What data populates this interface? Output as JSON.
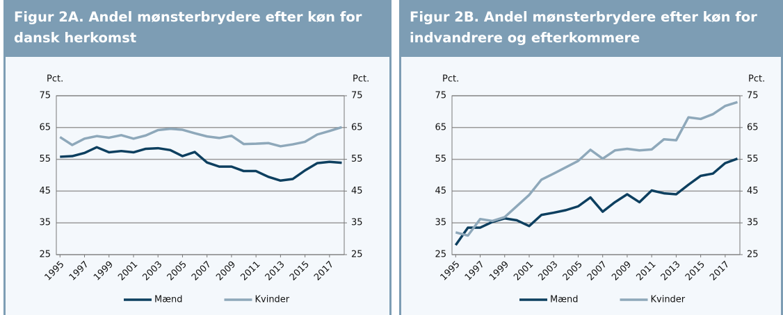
{
  "chart_data": [
    {
      "type": "line",
      "title": "Figur 2A. Andel mønsterbrydere efter køn for dansk herkomst",
      "ylabel": "Pct.",
      "y2label": "Pct.",
      "x": [
        1995,
        1996,
        1997,
        1998,
        1999,
        2000,
        2001,
        2002,
        2003,
        2004,
        2005,
        2006,
        2007,
        2008,
        2009,
        2010,
        2011,
        2012,
        2013,
        2014,
        2015,
        2016,
        2017,
        2018
      ],
      "xlim": [
        1994.7,
        2018.2
      ],
      "xticks": [
        1995,
        1997,
        1999,
        2001,
        2003,
        2005,
        2007,
        2009,
        2011,
        2013,
        2015,
        2017
      ],
      "ylim": [
        25,
        75
      ],
      "yticks": [
        25,
        35,
        45,
        55,
        65,
        75
      ],
      "y2lim": [
        25,
        75
      ],
      "y2ticks": [
        25,
        35,
        45,
        55,
        65,
        75
      ],
      "grid": true,
      "legend": "bottom",
      "series": [
        {
          "name": "Mænd",
          "color": "#0d3f5f",
          "values": [
            55.8,
            56,
            57,
            58.8,
            57.2,
            57.6,
            57.2,
            58.3,
            58.5,
            57.9,
            56,
            57.3,
            54,
            52.7,
            52.7,
            51.3,
            51.3,
            49.5,
            48.3,
            48.8,
            51.5,
            53.8,
            54.2,
            53.9
          ]
        },
        {
          "name": "Kvinder",
          "color": "#8ea8ba",
          "values": [
            62,
            59.5,
            61.5,
            62.3,
            61.8,
            62.6,
            61.5,
            62.5,
            64.2,
            64.6,
            64.3,
            63.2,
            62.2,
            61.7,
            62.4,
            59.8,
            59.9,
            60.1,
            59.1,
            59.7,
            60.5,
            62.8,
            63.9,
            65.1
          ]
        }
      ]
    },
    {
      "type": "line",
      "title": "Figur 2B. Andel mønsterbrydere efter køn for indvandrere og efterkommere",
      "ylabel": "Pct.",
      "y2label": "Pct.",
      "x": [
        1995,
        1996,
        1997,
        1998,
        1999,
        2000,
        2001,
        2002,
        2003,
        2004,
        2005,
        2006,
        2007,
        2008,
        2009,
        2010,
        2011,
        2012,
        2013,
        2014,
        2015,
        2016,
        2017,
        2018
      ],
      "xlim": [
        1994.7,
        2018.2
      ],
      "xticks": [
        1995,
        1997,
        1999,
        2001,
        2003,
        2005,
        2007,
        2009,
        2011,
        2013,
        2015,
        2017
      ],
      "ylim": [
        25,
        75
      ],
      "yticks": [
        25,
        35,
        45,
        55,
        65,
        75
      ],
      "y2lim": [
        25,
        75
      ],
      "y2ticks": [
        25,
        35,
        45,
        55,
        65,
        75
      ],
      "grid": true,
      "legend": "bottom",
      "series": [
        {
          "name": "Mænd",
          "color": "#0d3f5f",
          "values": [
            28,
            33.5,
            33.5,
            35.3,
            36.4,
            35.8,
            34,
            37.5,
            38.2,
            39,
            40.2,
            43,
            38.5,
            41.5,
            44,
            41.5,
            45.2,
            44.3,
            44,
            47,
            49.8,
            50.5,
            53.8,
            55.2
          ]
        },
        {
          "name": "Kvinder",
          "color": "#8ea8ba",
          "values": [
            32,
            31,
            36.2,
            35.6,
            36.8,
            40.3,
            43.8,
            48.6,
            50.5,
            52.5,
            54.5,
            58,
            55.2,
            57.8,
            58.3,
            57.8,
            58.1,
            61.3,
            61,
            68.2,
            67.7,
            69.2,
            71.8,
            73
          ]
        }
      ]
    }
  ]
}
